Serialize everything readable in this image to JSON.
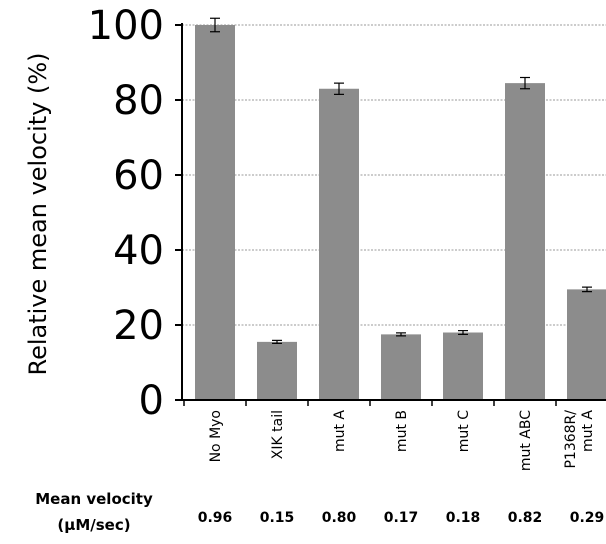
{
  "chart_data": {
    "type": "bar",
    "ylabel": "Relative mean velocity (%)",
    "ylim": [
      0,
      100
    ],
    "yticks": [
      0,
      20,
      40,
      60,
      80,
      100
    ],
    "grid": true,
    "categories": [
      [
        "No Myo"
      ],
      [
        "XIK tail"
      ],
      [
        "mut A"
      ],
      [
        "mut B"
      ],
      [
        "mut C"
      ],
      [
        "mut ABC"
      ],
      [
        "P1368R/",
        "mut A"
      ]
    ],
    "values": [
      100.0,
      15.5,
      83.0,
      17.5,
      18.0,
      84.5,
      29.5
    ],
    "errors": [
      1.8,
      0.4,
      1.5,
      0.4,
      0.5,
      1.5,
      0.6
    ],
    "bar_color": "#8c8c8c",
    "footer": {
      "title": [
        "Mean velocity",
        "(μM/sec)"
      ],
      "values": [
        "0.96",
        "0.15",
        "0.80",
        "0.17",
        "0.18",
        "0.82",
        "0.29"
      ]
    }
  }
}
